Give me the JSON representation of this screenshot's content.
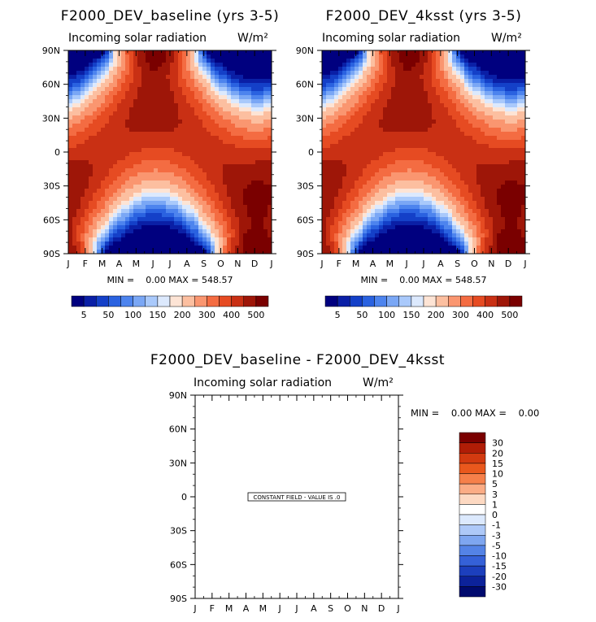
{
  "chart_data": [
    {
      "type": "contour",
      "title": "F2000_DEV_baseline (yrs 3-5)",
      "subtitle": "Incoming solar radiation",
      "units": "W/m²",
      "x": [
        "J",
        "F",
        "M",
        "A",
        "M",
        "J",
        "J",
        "A",
        "S",
        "O",
        "N",
        "D",
        "J"
      ],
      "y_labels": [
        "90N",
        "60N",
        "30N",
        "0",
        "30S",
        "60S",
        "90S"
      ],
      "stats": "MIN =    0.00 MAX = 548.57",
      "min": 0.0,
      "max": 548.57,
      "colorbar_levels": [
        "5",
        "50",
        "100",
        "150",
        "200",
        "300",
        "400",
        "500"
      ]
    },
    {
      "type": "contour",
      "title": "F2000_DEV_4ksst (yrs 3-5)",
      "subtitle": "Incoming solar radiation",
      "units": "W/m²",
      "x": [
        "J",
        "F",
        "M",
        "A",
        "M",
        "J",
        "J",
        "A",
        "S",
        "O",
        "N",
        "D",
        "J"
      ],
      "y_labels": [
        "90N",
        "60N",
        "30N",
        "0",
        "30S",
        "60S",
        "90S"
      ],
      "stats": "MIN =    0.00 MAX = 548.57",
      "min": 0.0,
      "max": 548.57,
      "colorbar_levels": [
        "5",
        "50",
        "100",
        "150",
        "200",
        "300",
        "400",
        "500"
      ]
    },
    {
      "type": "contour",
      "title": "F2000_DEV_baseline - F2000_DEV_4ksst",
      "subtitle": "Incoming solar radiation",
      "units": "W/m²",
      "x": [
        "J",
        "F",
        "M",
        "A",
        "M",
        "J",
        "J",
        "A",
        "S",
        "O",
        "N",
        "D",
        "J"
      ],
      "y_labels": [
        "90N",
        "60N",
        "30N",
        "0",
        "30S",
        "60S",
        "90S"
      ],
      "stats": "MIN =    0.00 MAX =    0.00",
      "min": 0.0,
      "max": 0.0,
      "note": "CONSTANT FIELD - VALUE IS .0",
      "colorbar_levels": [
        "30",
        "20",
        "15",
        "10",
        "5",
        "3",
        "1",
        "0",
        "-1",
        "-3",
        "-5",
        "-10",
        "-15",
        "-20",
        "-30"
      ]
    }
  ],
  "palettes": {
    "abs": [
      "#00007f",
      "#0a1fa6",
      "#1440c8",
      "#2a62e0",
      "#4d84ee",
      "#7aa7f5",
      "#a9c9fb",
      "#dce9fd",
      "#fde4d5",
      "#fcbfa0",
      "#fa9670",
      "#f46c42",
      "#e64b22",
      "#c93014",
      "#9e1608",
      "#7a0000"
    ],
    "diff": [
      "#7a0000",
      "#b01d06",
      "#d23a10",
      "#e9581d",
      "#f6804a",
      "#fbac85",
      "#fdd9c2",
      "#ffffff",
      "#dce9fd",
      "#aec9f8",
      "#7ea6f0",
      "#5483e6",
      "#3561d8",
      "#1c3fbd",
      "#0c229a",
      "#000a6e"
    ]
  }
}
